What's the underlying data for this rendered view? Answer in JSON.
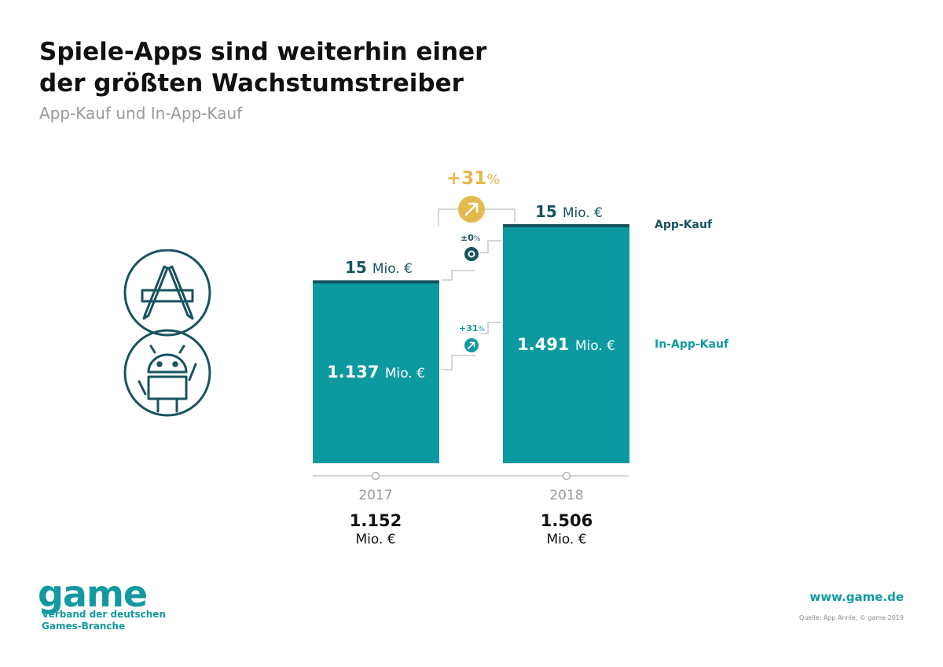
{
  "header": {
    "title_line1": "Spiele-Apps sind weiterhin einer",
    "title_line2": "der größten Wachstumstreiber",
    "subtitle": "App-Kauf und In-App-Kauf"
  },
  "colors": {
    "bar": "#0c9aa0",
    "bar_top": "#17535f",
    "accent": "#e5b94d",
    "teal": "#129aa0"
  },
  "icons": [
    "app-store-icon",
    "android-icon",
    "arrow-up-right-icon",
    "circle-dot-icon"
  ],
  "chart_data": {
    "type": "bar",
    "stacked": true,
    "categories": [
      "2017",
      "2018"
    ],
    "series": [
      {
        "name": "In-App-Kauf",
        "values": [
          1137,
          1491
        ]
      },
      {
        "name": "App-Kauf",
        "values": [
          15,
          15
        ]
      }
    ],
    "labels": {
      "in_app": [
        {
          "num": "1.137",
          "unit": "Mio. €"
        },
        {
          "num": "1.491",
          "unit": "Mio. €"
        }
      ],
      "app": [
        {
          "num": "15",
          "unit": "Mio. €"
        },
        {
          "num": "15",
          "unit": "Mio. €"
        }
      ]
    },
    "totals": [
      {
        "num": "1.152",
        "unit": "Mio. €"
      },
      {
        "num": "1.506",
        "unit": "Mio. €"
      }
    ],
    "growth": {
      "total": {
        "num": "+31",
        "pct": "%"
      },
      "app": {
        "num": "±0",
        "pct": "%"
      },
      "in_app": {
        "num": "+31",
        "pct": "%"
      }
    },
    "legend": {
      "app": "App-Kauf",
      "in_app": "In-App-Kauf"
    }
  },
  "footer": {
    "logo": "game",
    "logo_sub_line1": "Verband der deutschen",
    "logo_sub_line2": "Games-Branche",
    "url": "www.game.de",
    "source": "Quelle: App Annie, © game 2019"
  }
}
